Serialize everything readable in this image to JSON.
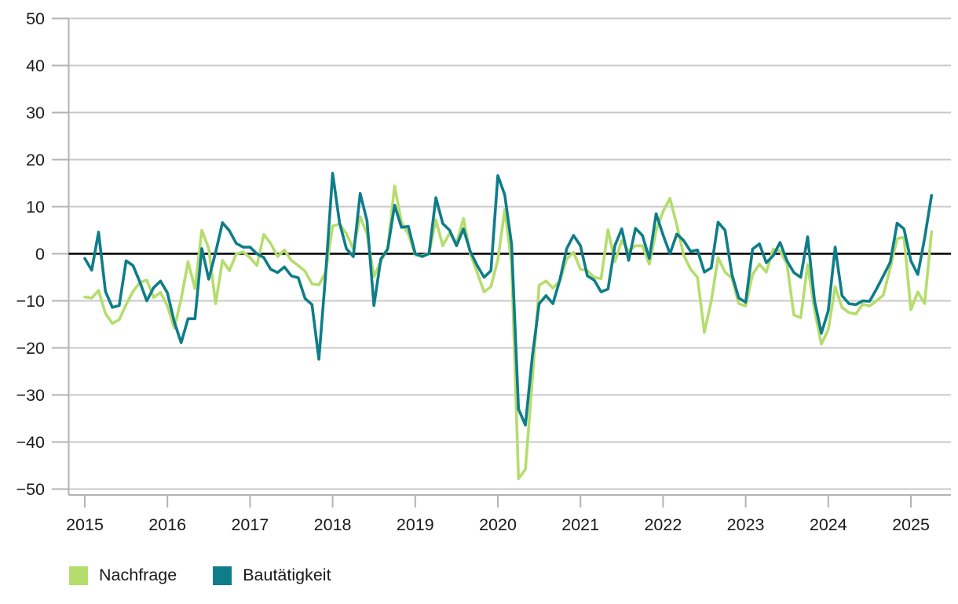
{
  "chart_data": {
    "type": "line",
    "title": "",
    "xlabel": "",
    "ylabel": "",
    "x_start": "2015-01",
    "x_end": "2025-04",
    "frequency": "monthly",
    "ylim": [
      -50,
      50
    ],
    "yticks": [
      50,
      40,
      30,
      20,
      10,
      0,
      -10,
      -20,
      -30,
      -40,
      -50
    ],
    "xticks": [
      "2015",
      "2016",
      "2017",
      "2018",
      "2019",
      "2020",
      "2021",
      "2022",
      "2023",
      "2024",
      "2025"
    ],
    "grid": true,
    "zero_line": true,
    "legend_position": "bottom-left",
    "series": [
      {
        "name": "Nachfrage",
        "color": "#b5dd6d",
        "values": [
          -9.2,
          -9.4,
          -7.8,
          -12.7,
          -14.8,
          -14.0,
          -10.8,
          -8.0,
          -6.1,
          -5.6,
          -9.3,
          -8.2,
          -11.1,
          -15.8,
          -9.6,
          -1.7,
          -7.4,
          5.0,
          1.1,
          -10.6,
          -1.4,
          -3.6,
          0.0,
          0.4,
          -0.8,
          -2.5,
          4.1,
          2.2,
          -0.6,
          0.8,
          -1.4,
          -2.5,
          -3.7,
          -6.4,
          -6.6,
          -3.9,
          5.9,
          6.3,
          4.3,
          1.0,
          7.9,
          4.2,
          -4.9,
          -1.6,
          1.1,
          14.4,
          6.7,
          4.2,
          -0.3,
          -0.4,
          0.0,
          7.2,
          1.7,
          4.4,
          2.2,
          7.5,
          0.0,
          -4.0,
          -8.1,
          -7.0,
          -1.3,
          9.4,
          -2.0,
          -47.8,
          -45.8,
          -27.0,
          -6.7,
          -5.8,
          -7.3,
          -5.8,
          -1.1,
          0.3,
          -3.3,
          -3.6,
          -5.0,
          -5.3,
          5.1,
          -1.7,
          2.8,
          0.6,
          1.7,
          1.7,
          -2.2,
          5.0,
          9.0,
          11.8,
          6.1,
          -0.3,
          -3.3,
          -5.0,
          -16.7,
          -10.0,
          -0.8,
          -3.9,
          -5.2,
          -10.6,
          -11.1,
          -4.4,
          -2.2,
          -3.9,
          1.0,
          0.6,
          -2.2,
          -13.0,
          -13.6,
          -2.3,
          -12.0,
          -19.2,
          -16.1,
          -7.0,
          -11.4,
          -12.5,
          -12.8,
          -10.7,
          -11.1,
          -10.0,
          -8.8,
          -3.0,
          3.2,
          3.5,
          -11.9,
          -8.1,
          -10.6,
          4.7
        ]
      },
      {
        "name": "Bautätigkeit",
        "color": "#0e7d89",
        "values": [
          -1.0,
          -3.5,
          4.6,
          -8.0,
          -11.4,
          -11.0,
          -1.5,
          -2.5,
          -6.0,
          -10.0,
          -7.2,
          -5.8,
          -8.3,
          -14.5,
          -18.9,
          -13.8,
          -13.8,
          1.1,
          -5.4,
          0.3,
          6.6,
          4.9,
          2.2,
          1.4,
          1.4,
          0.0,
          -0.8,
          -3.3,
          -4.0,
          -2.8,
          -4.7,
          -5.1,
          -9.5,
          -10.8,
          -22.4,
          -4.1,
          17.1,
          6.6,
          1.1,
          -0.6,
          12.8,
          7.0,
          -11.0,
          -1.1,
          1.0,
          10.3,
          5.6,
          5.8,
          0.0,
          -0.6,
          0.0,
          11.9,
          6.4,
          5.0,
          1.7,
          5.3,
          0.5,
          -2.5,
          -5.0,
          -3.6,
          16.6,
          12.5,
          2.0,
          -33.0,
          -36.4,
          -22.0,
          -10.6,
          -8.9,
          -10.6,
          -5.6,
          1.1,
          3.9,
          1.7,
          -4.7,
          -5.6,
          -8.1,
          -7.5,
          1.7,
          5.3,
          -1.4,
          5.4,
          3.9,
          -1.0,
          8.5,
          4.0,
          0.0,
          4.2,
          2.8,
          0.5,
          0.8,
          -3.9,
          -3.0,
          6.7,
          5.0,
          -4.4,
          -9.4,
          -10.3,
          1.0,
          2.1,
          -1.9,
          -0.4,
          2.4,
          -1.5,
          -4.0,
          -5.0,
          3.6,
          -10.0,
          -16.9,
          -12.1,
          1.4,
          -8.9,
          -10.6,
          -10.8,
          -10.0,
          -10.1,
          -7.5,
          -4.7,
          -1.8,
          6.5,
          5.3,
          -1.5,
          -4.4,
          3.3,
          12.4
        ]
      }
    ]
  },
  "legend": {
    "items": [
      {
        "label": "Nachfrage",
        "color": "#b5dd6d"
      },
      {
        "label": "Bautätigkeit",
        "color": "#0e7d89"
      }
    ]
  },
  "style": {
    "grid_color": "#c9c9c9",
    "axis_color": "#b3b3b3",
    "zero_line_color": "#000000",
    "label_color": "#1a1a1a",
    "background": "#ffffff"
  }
}
